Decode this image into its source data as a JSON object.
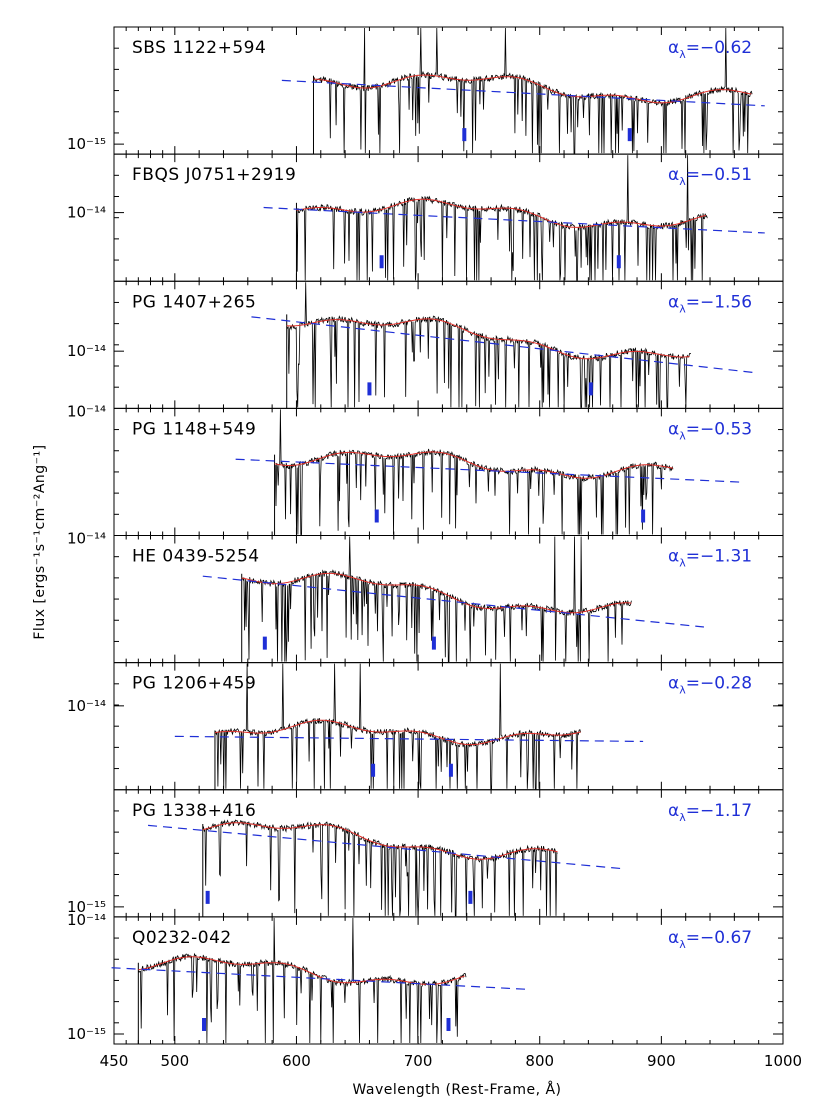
{
  "chart_data": {
    "type": "line",
    "xlabel": "Wavelength (Rest-Frame, Å)",
    "ylabel": "Flux [ergs⁻¹s⁻¹cm⁻²Ang⁻¹]",
    "x_ticks": [
      "450",
      "500",
      "600",
      "700",
      "800",
      "900",
      "1000"
    ],
    "xlim": [
      450,
      1000
    ],
    "colors": {
      "spectrum": "#000000",
      "continuum_fit": "#e0302a",
      "power_law": "#1f2fd6",
      "marker": "#1f2fd6"
    },
    "panels": [
      {
        "name": "SBS 1122+594",
        "alpha_label": "α",
        "alpha_sub": "λ",
        "alpha_value": "=−0.62",
        "y_tick_label": "10⁻¹⁵",
        "y_tick_label_top": "",
        "spectrum_range": [
          614,
          975
        ],
        "powerlaw_range": [
          588,
          985
        ],
        "powerlaw_level": [
          0.42,
          0.62
        ],
        "markers": [
          738,
          874
        ]
      },
      {
        "name": "FBQS J0751+2919",
        "alpha_label": "α",
        "alpha_sub": "λ",
        "alpha_value": "=−0.51",
        "y_tick_label": "10⁻¹⁴",
        "y_tick_label_top": "",
        "spectrum_range": [
          600,
          938
        ],
        "powerlaw_range": [
          573,
          985
        ],
        "powerlaw_level": [
          0.42,
          0.62
        ],
        "markers": [
          670,
          865
        ]
      },
      {
        "name": "PG 1407+265",
        "alpha_label": "α",
        "alpha_sub": "λ",
        "alpha_value": "=−1.56",
        "y_tick_label": "10⁻¹⁴",
        "y_tick_label_top": "",
        "spectrum_range": [
          592,
          925
        ],
        "powerlaw_range": [
          563,
          978
        ],
        "powerlaw_level": [
          0.28,
          0.72
        ],
        "markers": [
          660,
          842
        ]
      },
      {
        "name": "PG 1148+549",
        "alpha_label": "α",
        "alpha_sub": "λ",
        "alpha_value": "=−0.53",
        "y_tick_label": "",
        "y_tick_label_top": "10⁻¹⁴",
        "spectrum_range": [
          582,
          910
        ],
        "powerlaw_range": [
          550,
          965
        ],
        "powerlaw_level": [
          0.4,
          0.58
        ],
        "markers": [
          666,
          885
        ]
      },
      {
        "name": "HE 0439-5254",
        "alpha_label": "α",
        "alpha_sub": "λ",
        "alpha_value": "=−1.31",
        "y_tick_label": "",
        "y_tick_label_top": "10⁻¹⁴",
        "spectrum_range": [
          555,
          876
        ],
        "powerlaw_range": [
          523,
          935
        ],
        "powerlaw_level": [
          0.32,
          0.72
        ],
        "markers": [
          574,
          713
        ]
      },
      {
        "name": "PG 1206+459",
        "alpha_label": "α",
        "alpha_sub": "λ",
        "alpha_value": "=−0.28",
        "y_tick_label": "10⁻¹⁴",
        "y_tick_label_top": "",
        "spectrum_range": [
          533,
          834
        ],
        "powerlaw_range": [
          500,
          885
        ],
        "powerlaw_level": [
          0.58,
          0.62
        ],
        "markers": [
          663,
          727
        ]
      },
      {
        "name": "PG 1338+416",
        "alpha_label": "α",
        "alpha_sub": "λ",
        "alpha_value": "=−1.17",
        "y_tick_label": "10⁻¹⁵",
        "y_tick_label_top": "",
        "spectrum_range": [
          523,
          815
        ],
        "powerlaw_range": [
          478,
          867
        ],
        "powerlaw_level": [
          0.28,
          0.62
        ],
        "markers": [
          527,
          743
        ]
      },
      {
        "name": "Q0232-042",
        "alpha_label": "α",
        "alpha_sub": "λ",
        "alpha_value": "=−0.67",
        "y_tick_label": "10⁻¹⁵",
        "y_tick_label_top": "10⁻¹⁴",
        "spectrum_range": [
          470,
          740
        ],
        "powerlaw_range": [
          448,
          790
        ],
        "powerlaw_level": [
          0.4,
          0.57
        ],
        "markers": [
          524,
          725
        ]
      }
    ]
  }
}
